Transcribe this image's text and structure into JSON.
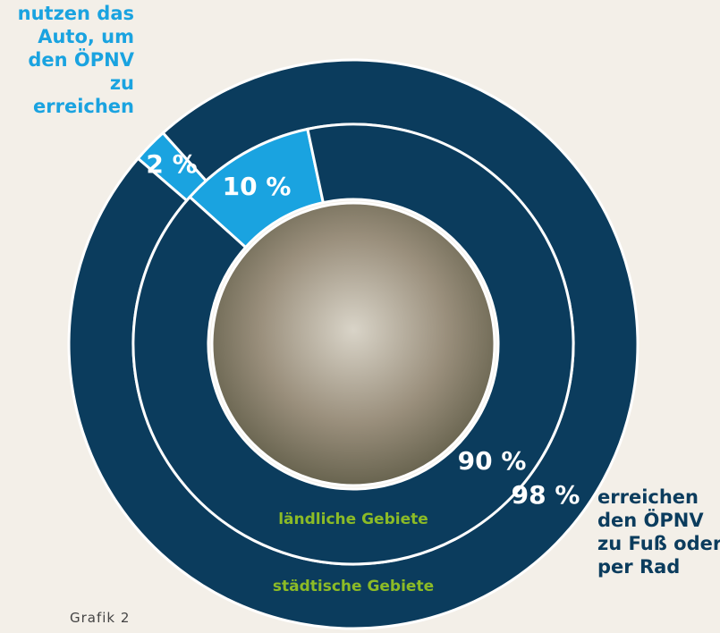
{
  "chart_data": {
    "type": "donut",
    "categories": [
      "erreichen den ÖPNV zu Fuß oder per Rad",
      "nutzen das Auto, um den ÖPNV zu erreichen"
    ],
    "colors": [
      "#0b3c5d",
      "#1aa3e0"
    ],
    "series": [
      {
        "name": "städtische Gebiete",
        "values": [
          98,
          2
        ],
        "value_labels": [
          "98 %",
          "2 %"
        ]
      },
      {
        "name": "ländliche Gebiete",
        "values": [
          90,
          10
        ],
        "value_labels": [
          "90 %",
          "10 %"
        ]
      }
    ],
    "caption": "Grafik 2"
  }
}
